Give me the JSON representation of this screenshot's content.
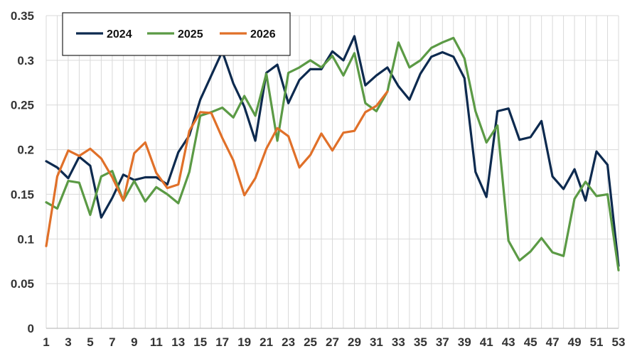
{
  "chart_data": {
    "type": "line",
    "title": "",
    "xlabel": "",
    "ylabel": "",
    "ylim": [
      0,
      0.35
    ],
    "xlim": [
      1,
      53
    ],
    "y_ticks": [
      "0",
      "0.05",
      "0.1",
      "0.15",
      "0.2",
      "0.25",
      "0.3",
      "0.35"
    ],
    "x_ticks": [
      "1",
      "3",
      "5",
      "7",
      "9",
      "11",
      "13",
      "15",
      "17",
      "19",
      "21",
      "23",
      "25",
      "27",
      "29",
      "31",
      "33",
      "35",
      "37",
      "39",
      "41",
      "43",
      "45",
      "47",
      "49",
      "51",
      "53"
    ],
    "grid": "vertical lines at every week, horizontal at y ticks",
    "legend_position": "top-left",
    "series": [
      {
        "name": "2024",
        "color": "#0d2a4f",
        "x": [
          1,
          2,
          3,
          4,
          5,
          6,
          7,
          8,
          9,
          10,
          11,
          12,
          13,
          14,
          15,
          16,
          17,
          18,
          19,
          20,
          21,
          22,
          23,
          24,
          25,
          26,
          27,
          28,
          29,
          30,
          31,
          32,
          33,
          34,
          35,
          36,
          37,
          38,
          39,
          40,
          41,
          42,
          43,
          44,
          45,
          46,
          47,
          48,
          49,
          50,
          51,
          52,
          53
        ],
        "values": [
          0.187,
          0.18,
          0.168,
          0.192,
          0.182,
          0.124,
          0.146,
          0.172,
          0.166,
          0.169,
          0.169,
          0.161,
          0.197,
          0.216,
          0.256,
          0.283,
          0.31,
          0.274,
          0.248,
          0.21,
          0.286,
          0.295,
          0.252,
          0.278,
          0.29,
          0.29,
          0.31,
          0.3,
          0.327,
          0.272,
          0.283,
          0.292,
          0.271,
          0.256,
          0.285,
          0.304,
          0.309,
          0.304,
          0.28,
          0.175,
          0.147,
          0.243,
          0.246,
          0.211,
          0.214,
          0.232,
          0.17,
          0.156,
          0.178,
          0.143,
          0.198,
          0.183,
          0.07
        ]
      },
      {
        "name": "2025",
        "color": "#5b9a45",
        "x": [
          1,
          2,
          3,
          4,
          5,
          6,
          7,
          8,
          9,
          10,
          11,
          12,
          13,
          14,
          15,
          16,
          17,
          18,
          19,
          20,
          21,
          22,
          23,
          24,
          25,
          26,
          27,
          28,
          29,
          30,
          31,
          32,
          33,
          34,
          35,
          36,
          37,
          38,
          39,
          40,
          41,
          42,
          43,
          44,
          45,
          46,
          47,
          48,
          49,
          50,
          51,
          52,
          53
        ],
        "values": [
          0.141,
          0.134,
          0.165,
          0.163,
          0.127,
          0.17,
          0.176,
          0.143,
          0.165,
          0.142,
          0.158,
          0.15,
          0.14,
          0.175,
          0.238,
          0.242,
          0.247,
          0.236,
          0.26,
          0.238,
          0.285,
          0.21,
          0.286,
          0.292,
          0.3,
          0.292,
          0.305,
          0.283,
          0.308,
          0.252,
          0.243,
          0.265,
          0.32,
          0.292,
          0.3,
          0.314,
          0.32,
          0.325,
          0.302,
          0.243,
          0.208,
          0.227,
          0.098,
          0.076,
          0.086,
          0.101,
          0.085,
          0.081,
          0.145,
          0.164,
          0.148,
          0.15,
          0.065
        ]
      },
      {
        "name": "2026",
        "color": "#e07029",
        "x": [
          1,
          2,
          3,
          4,
          5,
          6,
          7,
          8,
          9,
          10,
          11,
          12,
          13,
          14,
          15,
          16,
          17,
          18,
          19,
          20,
          21,
          22,
          23,
          24,
          25,
          26,
          27,
          28,
          29,
          30,
          31,
          32
        ],
        "values": [
          0.092,
          0.17,
          0.199,
          0.193,
          0.201,
          0.19,
          0.169,
          0.143,
          0.196,
          0.208,
          0.174,
          0.157,
          0.161,
          0.221,
          0.242,
          0.241,
          0.213,
          0.188,
          0.149,
          0.168,
          0.201,
          0.224,
          0.215,
          0.18,
          0.194,
          0.218,
          0.199,
          0.219,
          0.221,
          0.242,
          0.249,
          0.265
        ]
      }
    ]
  }
}
